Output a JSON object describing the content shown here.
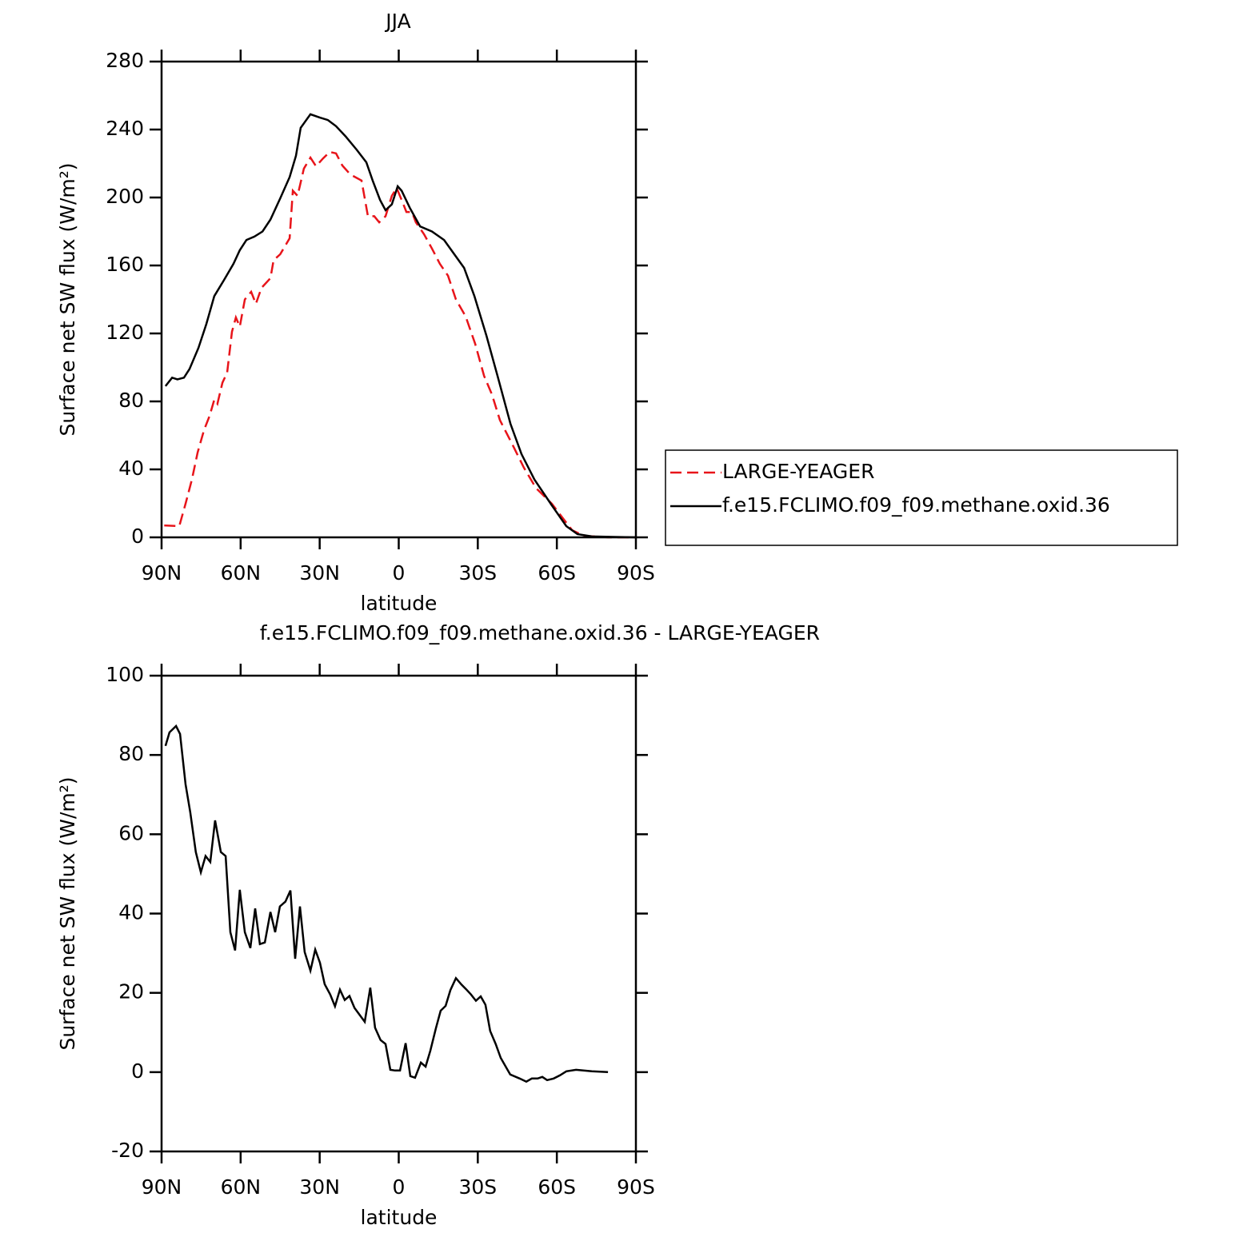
{
  "chart_data": [
    {
      "type": "line",
      "title": "JJA",
      "xlabel": "latitude",
      "ylabel": "Surface net SW flux (W/m²)",
      "xlim": [
        90,
        -90
      ],
      "xticks": [
        {
          "value": 90,
          "label": "90N"
        },
        {
          "value": 60,
          "label": "60N"
        },
        {
          "value": 30,
          "label": "30N"
        },
        0,
        {
          "value": -30,
          "label": "30S"
        },
        {
          "value": -60,
          "label": "60S"
        },
        {
          "value": -90,
          "label": "90S"
        }
      ],
      "ylim": [
        0,
        280
      ],
      "yticks": [
        0,
        40,
        80,
        120,
        160,
        200,
        240,
        280
      ],
      "legend": "right",
      "series": [
        {
          "name": "LARGE-YEAGER",
          "color": "#e8141a",
          "dash": true,
          "x": [
            89,
            83.3,
            80.9,
            78.5,
            76.3,
            73.9,
            71.8,
            70,
            68.8,
            66.9,
            65.1,
            63.3,
            61.8,
            60.3,
            58.4,
            56,
            54.2,
            52.1,
            48.7,
            47.5,
            45,
            41.4,
            40.2,
            38.4,
            36,
            33.5,
            31.4,
            28.7,
            26.2,
            23.8,
            21.4,
            18.4,
            14.1,
            11.7,
            9.3,
            7.4,
            5,
            2.6,
            0.8,
            -1.1,
            -2.9,
            -5,
            -6.5,
            -9.6,
            -12.6,
            -15.6,
            -18.7,
            -21.7,
            -25.4,
            -29,
            -32.4,
            -35.4,
            -38.4,
            -43,
            -47.5,
            -52.1,
            -58.1,
            -62.7,
            -65.8,
            -70.3,
            -79.4,
            -90
          ],
          "values": [
            7,
            6.6,
            19.8,
            34,
            50,
            63,
            71.5,
            81,
            78.6,
            91,
            97,
            121,
            129.4,
            124,
            140,
            144.5,
            137.4,
            146.8,
            152.5,
            163,
            166.6,
            176,
            204,
            201,
            217,
            223.5,
            218.4,
            223,
            226.8,
            226,
            218.8,
            213.6,
            210,
            189,
            189,
            185.4,
            189,
            201,
            205.6,
            198.6,
            191.5,
            191.5,
            185.4,
            178.4,
            170,
            161,
            154,
            140,
            130,
            114,
            95,
            84,
            69,
            55,
            41,
            29,
            19.8,
            10.4,
            4.2,
            0.9,
            0,
            0
          ]
        },
        {
          "name": "f.e15.FCLIMO.f09_f09.methane.oxid.36",
          "color": "#000000",
          "dash": false,
          "x": [
            88.5,
            86,
            84,
            81.5,
            79.4,
            76,
            73,
            70,
            66.3,
            62.7,
            60.3,
            57.8,
            54.8,
            51.7,
            48.7,
            45,
            41.4,
            39,
            37.2,
            33.5,
            29.9,
            26.9,
            23.8,
            20.2,
            15.9,
            12.3,
            9.9,
            7.1,
            5,
            2.6,
            0.4,
            -1.1,
            -4.2,
            -8.1,
            -12.6,
            -17.2,
            -21.1,
            -24.8,
            -28.7,
            -33.3,
            -37.5,
            -42.4,
            -46.6,
            -51.5,
            -58.1,
            -63.6,
            -67.8,
            -73.3,
            -90
          ],
          "values": [
            89,
            94,
            93,
            94,
            99,
            111.5,
            125.6,
            142,
            151.5,
            161,
            169,
            175,
            177,
            180,
            187,
            199.5,
            212,
            224.5,
            241,
            249,
            247,
            245.6,
            242,
            236,
            228,
            220.7,
            210,
            198.6,
            192.5,
            196,
            206.6,
            204,
            194,
            183,
            180,
            175,
            166.6,
            158.6,
            142,
            118.6,
            95,
            66.8,
            49,
            34,
            18.8,
            6.6,
            1.9,
            0.5,
            0
          ]
        }
      ]
    },
    {
      "type": "line",
      "title": "f.e15.FCLIMO.f09_f09.methane.oxid.36 - LARGE-YEAGER",
      "xlabel": "latitude",
      "ylabel": "Surface net SW flux (W/m²)",
      "xlim": [
        90,
        -90
      ],
      "xticks": [
        {
          "value": 90,
          "label": "90N"
        },
        {
          "value": 60,
          "label": "60N"
        },
        {
          "value": 30,
          "label": "30N"
        },
        0,
        {
          "value": -30,
          "label": "30S"
        },
        {
          "value": -60,
          "label": "60S"
        },
        {
          "value": -90,
          "label": "90S"
        }
      ],
      "ylim": [
        -20,
        100
      ],
      "yticks": [
        -20,
        0,
        20,
        40,
        60,
        80,
        100
      ],
      "series": [
        {
          "color": "#000000",
          "dash": false,
          "x": [
            88.5,
            87,
            84.5,
            83,
            80.9,
            79.1,
            77,
            75.1,
            73.3,
            71.5,
            69.7,
            67.5,
            65.7,
            63.9,
            62.1,
            60.3,
            58.4,
            56.3,
            54.5,
            52.7,
            50.8,
            48.7,
            46.9,
            45.1,
            43,
            41.1,
            39.3,
            37.5,
            35.7,
            33.5,
            31.7,
            29.9,
            28.1,
            26,
            24.2,
            22.3,
            20.5,
            18.7,
            16.8,
            14.7,
            12.9,
            10.8,
            9,
            6.9,
            5,
            3.2,
            1.4,
            -0.5,
            -2.6,
            -4.4,
            -6.2,
            -8.4,
            -10.2,
            -12,
            -14.1,
            -15.9,
            -17.8,
            -19.6,
            -21.7,
            -23.8,
            -25.6,
            -27.4,
            -29.3,
            -31.1,
            -32.9,
            -34.7,
            -36.8,
            -38.7,
            -42.3,
            -45.9,
            -48.4,
            -50.5,
            -52.7,
            -54.5,
            -56.3,
            -58.8,
            -61.2,
            -63.6,
            -67.3,
            -73.3,
            -79.4
          ],
          "values": [
            82.3,
            85.7,
            87.3,
            85.3,
            72.6,
            65.5,
            55.5,
            50.4,
            54.5,
            53,
            63.5,
            55.5,
            54.5,
            35.3,
            30.7,
            46,
            35.3,
            31.3,
            41.3,
            32.3,
            32.7,
            40.4,
            35.3,
            41.8,
            43,
            45.8,
            28.6,
            41.8,
            30.3,
            25.6,
            30.9,
            27.6,
            22.2,
            19.6,
            16.6,
            20.8,
            18.2,
            19.2,
            16.2,
            14.3,
            12.7,
            21.3,
            11.2,
            8.1,
            7.1,
            0.6,
            0.4,
            0.4,
            7.3,
            -1,
            -1.4,
            2.4,
            1.4,
            5.4,
            11.1,
            15.5,
            16.7,
            20.7,
            23.7,
            22.1,
            20.9,
            19.6,
            18,
            19.1,
            17,
            10.4,
            7.1,
            3.6,
            -0.6,
            -1.6,
            -2.4,
            -1.6,
            -1.6,
            -1.2,
            -2,
            -1.6,
            -0.8,
            0.2,
            0.6,
            0.2,
            0
          ]
        }
      ]
    }
  ]
}
